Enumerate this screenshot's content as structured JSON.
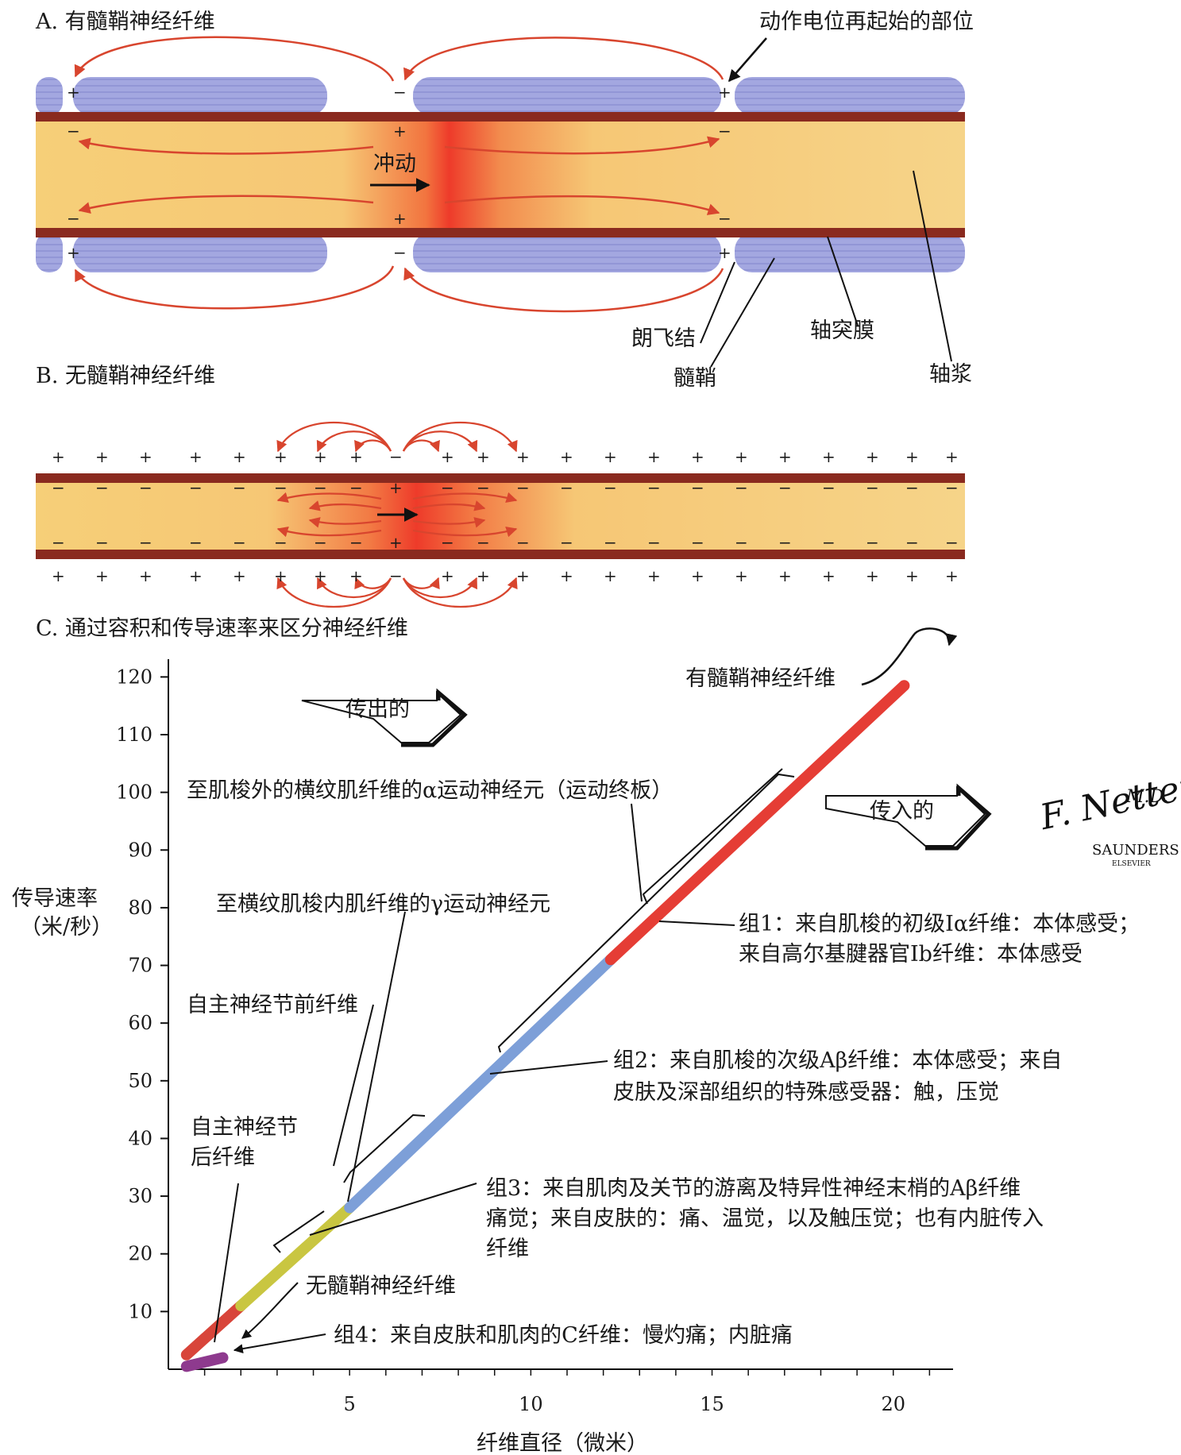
{
  "section_a": {
    "title": "A. 有髓鞘神经纤维",
    "impulse_label": "冲动",
    "reinitiation_label": "动作电位再起始的部位",
    "node_label": "朗飞结",
    "myelin_label": "髓鞘",
    "axolemma_label": "轴突膜",
    "axoplasm_label": "轴浆"
  },
  "section_b": {
    "title": "B. 无髓鞘神经纤维"
  },
  "section_c": {
    "title": "C. 通过容积和传导速率来区分神经纤维",
    "efferent_label": "传出的",
    "afferent_label": "传入的",
    "efferent_annotations": [
      "至肌梭外的横纹肌纤维的α运动神经元（运动终板）",
      "至横纹肌梭内肌纤维的γ运动神经元",
      "自主神经节前纤维",
      "自主神经节",
      "后纤维"
    ],
    "myelinated_label": "有髓鞘神经纤维",
    "unmyelinated_label": "无髓鞘神经纤维",
    "group1": [
      "组1：来自肌梭的初级Iα纤维：本体感受；",
      "来自高尔基腱器官Ib纤维：本体感受"
    ],
    "group2": [
      "组2：来自肌梭的次级Aβ纤维：本体感受；来自",
      "皮肤及深部组织的特殊感受器：触，压觉"
    ],
    "group3": [
      "组3：来自肌肉及关节的游离及特异性神经末梢的Aβ纤维",
      "痛觉；来自皮肤的：痛、温觉，以及触压觉；也有内脏传入",
      "纤维"
    ],
    "group4": "组4：来自皮肤和肌肉的C纤维：慢灼痛；内脏痛"
  },
  "chart_data": {
    "type": "line",
    "xlabel": "纤维直径（微米）",
    "ylabel": [
      "传导速率",
      "（米/秒）"
    ],
    "xlim": [
      0,
      21
    ],
    "ylim": [
      0,
      120
    ],
    "x_ticks": [
      5,
      10,
      15,
      20
    ],
    "y_ticks": [
      10,
      20,
      30,
      40,
      50,
      60,
      70,
      80,
      90,
      100,
      110,
      120
    ],
    "series": [
      {
        "color": "#d8453a",
        "points": [
          [
            0.5,
            2.5
          ],
          [
            2,
            11
          ]
        ]
      },
      {
        "color": "#c9c641",
        "points": [
          [
            2,
            11
          ],
          [
            5,
            28
          ]
        ]
      },
      {
        "color": "#7d9fd8",
        "points": [
          [
            5,
            28
          ],
          [
            12.2,
            71
          ]
        ]
      },
      {
        "color": "#e53d35",
        "points": [
          [
            12.2,
            71
          ],
          [
            20.3,
            118.5
          ]
        ]
      },
      {
        "color": "#8e3a8e",
        "points": [
          [
            0.5,
            0.5
          ],
          [
            1.5,
            2
          ]
        ]
      }
    ]
  },
  "signature": {
    "line1": "F. Netter",
    "line2": "M.D.",
    "publisher": "SAUNDERS",
    "imprint": "ELSEVIER"
  },
  "colors": {
    "axon_fill": "#f5c86a",
    "membrane": "#8a2a1f",
    "myelin": "#9aa0dc",
    "current_arrow": "#d8452e"
  }
}
